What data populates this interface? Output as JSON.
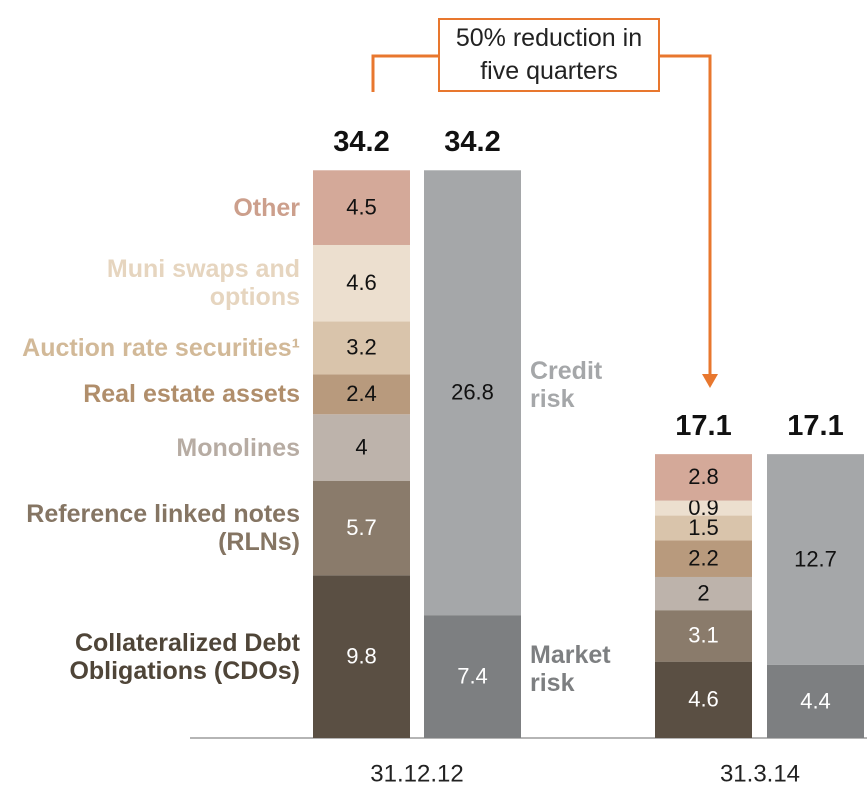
{
  "chart_data": {
    "type": "stacked_bar",
    "annotation": "50% reduction in five quarters",
    "categories": [
      "31.12.12",
      "31.3.14"
    ],
    "stacks": [
      {
        "totals": [
          34.2,
          17.1
        ],
        "series": [
          {
            "name": "Collateralized Debt Obligations (CDOs)",
            "color": "#5a4f43",
            "label_color": "#4f4538",
            "values": [
              9.8,
              4.6
            ]
          },
          {
            "name": "Reference linked notes (RLNs)",
            "color": "#8a7b6b",
            "label_color": "#857563",
            "values": [
              5.7,
              3.1
            ]
          },
          {
            "name": "Monolines",
            "color": "#bdb3ab",
            "label_color": "#b7aca3",
            "values": [
              4.0,
              2.0
            ]
          },
          {
            "name": "Real estate assets",
            "color": "#b89a7d",
            "label_color": "#b08e6b",
            "values": [
              2.4,
              2.2
            ]
          },
          {
            "name": "Auction rate securities¹",
            "color": "#d9c4ab",
            "label_color": "#d2b998",
            "values": [
              3.2,
              1.5
            ]
          },
          {
            "name": "Muni swaps and options",
            "color": "#ecdfcf",
            "label_color": "#e6d5bf",
            "values": [
              4.6,
              0.9
            ]
          },
          {
            "name": "Other",
            "color": "#d4a999",
            "label_color": "#cc9f8c",
            "values": [
              4.5,
              2.8
            ]
          }
        ]
      },
      {
        "totals": [
          34.2,
          17.1
        ],
        "series": [
          {
            "name": "Market risk",
            "color": "#7d7f81",
            "label_color": "#7d7f81",
            "values": [
              7.4,
              4.4
            ]
          },
          {
            "name": "Credit risk",
            "color": "#a5a7a9",
            "label_color": "#a5a7a9",
            "values": [
              26.8,
              12.7
            ]
          }
        ]
      }
    ]
  }
}
